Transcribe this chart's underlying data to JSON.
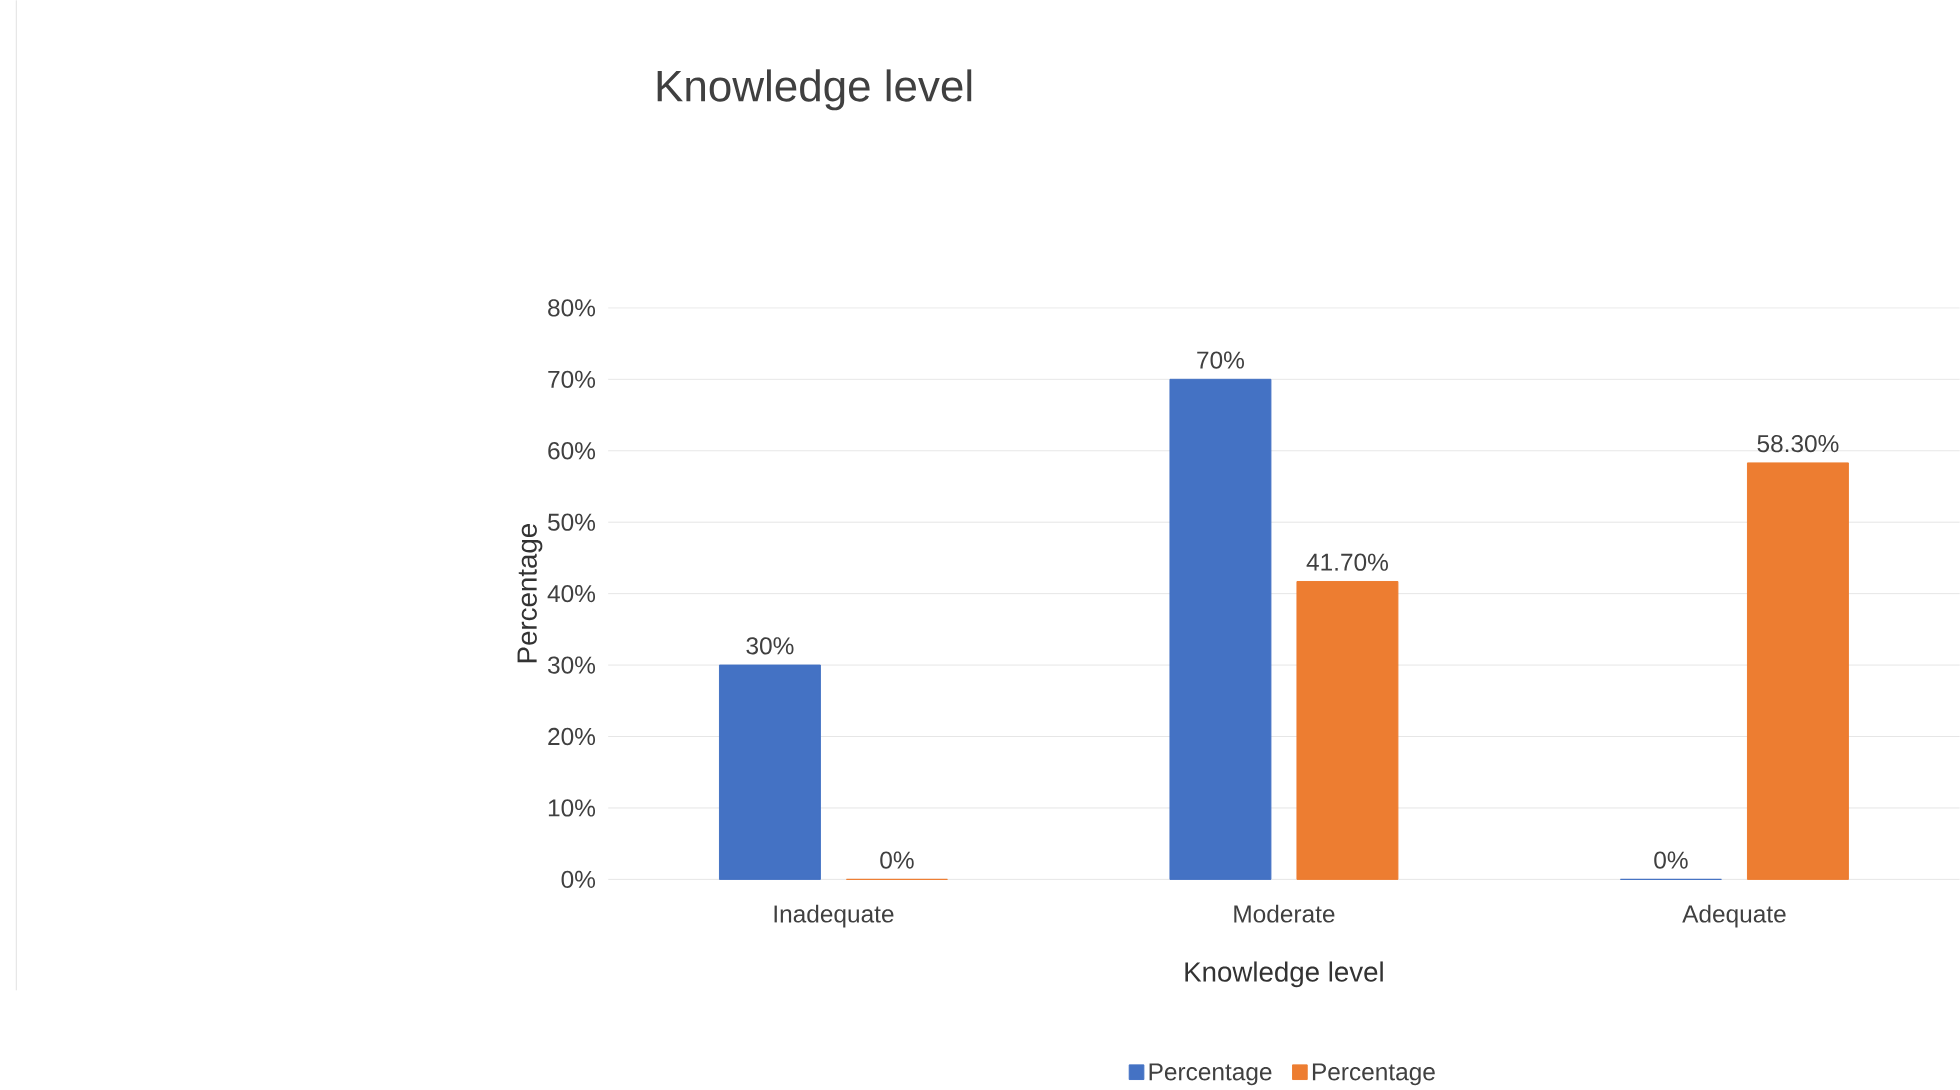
{
  "chart_data": {
    "type": "bar",
    "title": "Knowledge level",
    "xlabel": "Knowledge level",
    "ylabel": "Percentage",
    "categories": [
      "Inadequate",
      "Moderate",
      "Adequate"
    ],
    "series": [
      {
        "name": "Percentage",
        "color": "#4472c4",
        "values": [
          30,
          70,
          0
        ],
        "value_labels": [
          "30%",
          "70%",
          "0%"
        ]
      },
      {
        "name": "Percentage",
        "color": "#ed7d31",
        "values": [
          0,
          41.7,
          58.3
        ],
        "value_labels": [
          "0%",
          "41.70%",
          "58.30%"
        ]
      }
    ],
    "ylim": [
      0,
      80
    ],
    "yticks": [
      {
        "value": 0,
        "label": "0%"
      },
      {
        "value": 10,
        "label": "10%"
      },
      {
        "value": 20,
        "label": "20%"
      },
      {
        "value": 30,
        "label": "30%"
      },
      {
        "value": 40,
        "label": "40%"
      },
      {
        "value": 50,
        "label": "50%"
      },
      {
        "value": 60,
        "label": "60%"
      },
      {
        "value": 70,
        "label": "70%"
      },
      {
        "value": 80,
        "label": "80%"
      }
    ],
    "grid": "y",
    "legend": "bottom"
  }
}
